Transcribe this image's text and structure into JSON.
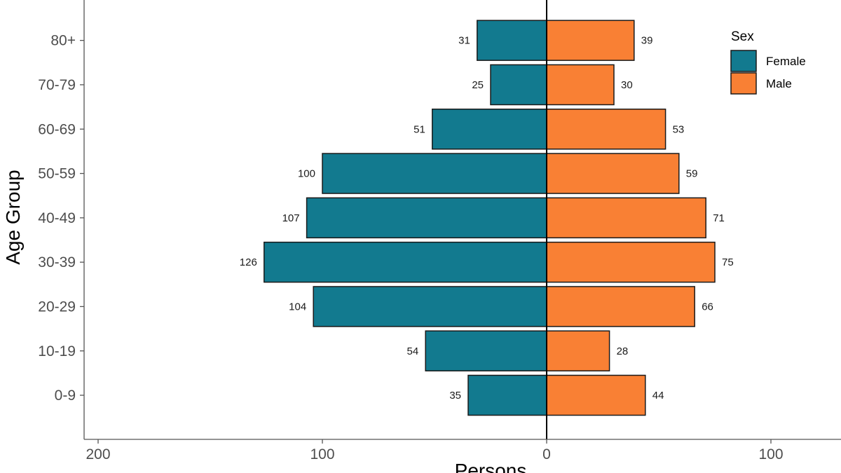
{
  "chart_data": {
    "type": "bar",
    "orientation": "horizontal",
    "categories": [
      "0-9",
      "10-19",
      "20-29",
      "30-39",
      "40-49",
      "50-59",
      "60-69",
      "70-79",
      "80+"
    ],
    "series": [
      {
        "name": "Female",
        "color": "#127a8f",
        "values": [
          35,
          54,
          104,
          126,
          107,
          100,
          51,
          25,
          31
        ]
      },
      {
        "name": "Male",
        "color": "#f98034",
        "values": [
          44,
          28,
          66,
          75,
          71,
          59,
          53,
          30,
          39
        ]
      }
    ],
    "xlabel": "Persons",
    "ylabel": "Age Group",
    "xlim": [
      -205,
      130
    ],
    "xticks": [
      -200,
      -100,
      0,
      100
    ],
    "xtick_labels": [
      "200",
      "100",
      "0",
      "100"
    ],
    "legend": {
      "title": "Sex",
      "position": "top-right"
    },
    "grid": false
  }
}
